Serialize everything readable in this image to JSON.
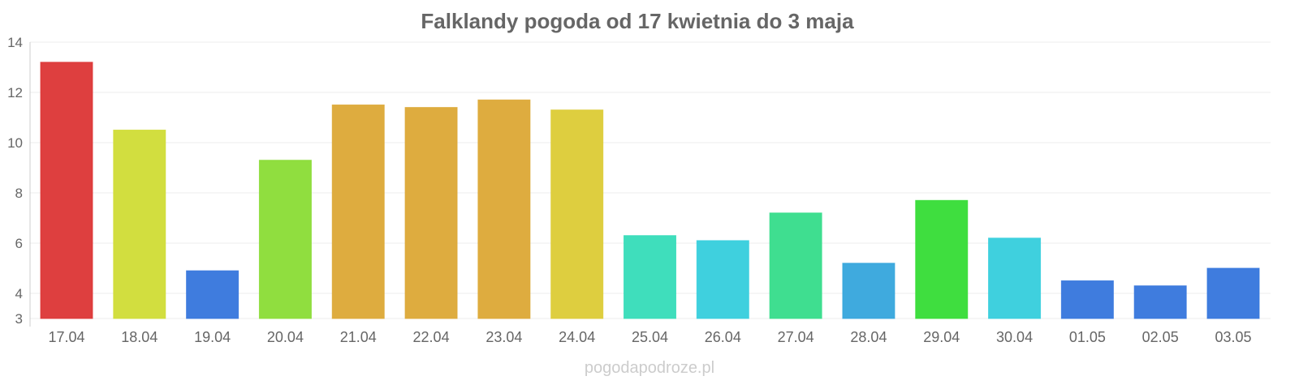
{
  "chart_data": {
    "type": "bar",
    "title": "Falklandy pogoda od 17 kwietnia do 3 maja",
    "xlabel": "",
    "ylabel": "",
    "ylim": [
      3,
      14
    ],
    "yticks": [
      3,
      4,
      6,
      8,
      10,
      12,
      14
    ],
    "grid": true,
    "categories": [
      "17.04",
      "18.04",
      "19.04",
      "20.04",
      "21.04",
      "22.04",
      "23.04",
      "24.04",
      "25.04",
      "26.04",
      "27.04",
      "28.04",
      "29.04",
      "30.04",
      "01.05",
      "02.05",
      "03.05"
    ],
    "values": [
      13.2,
      10.5,
      4.9,
      9.3,
      11.5,
      11.4,
      11.7,
      11.3,
      6.3,
      6.1,
      7.2,
      5.2,
      7.7,
      6.2,
      4.5,
      4.3,
      5.0
    ],
    "colors": [
      "#dc3535",
      "#d0dc35",
      "#3575dc",
      "#8adc35",
      "#dca835",
      "#dca835",
      "#dca835",
      "#dccb35",
      "#35dcb8",
      "#35cedc",
      "#35dc8a",
      "#35a5dc",
      "#35dc35",
      "#35cedc",
      "#3575dc",
      "#3575dc",
      "#3575dc"
    ]
  },
  "watermark": "pogodapodroze.pl"
}
